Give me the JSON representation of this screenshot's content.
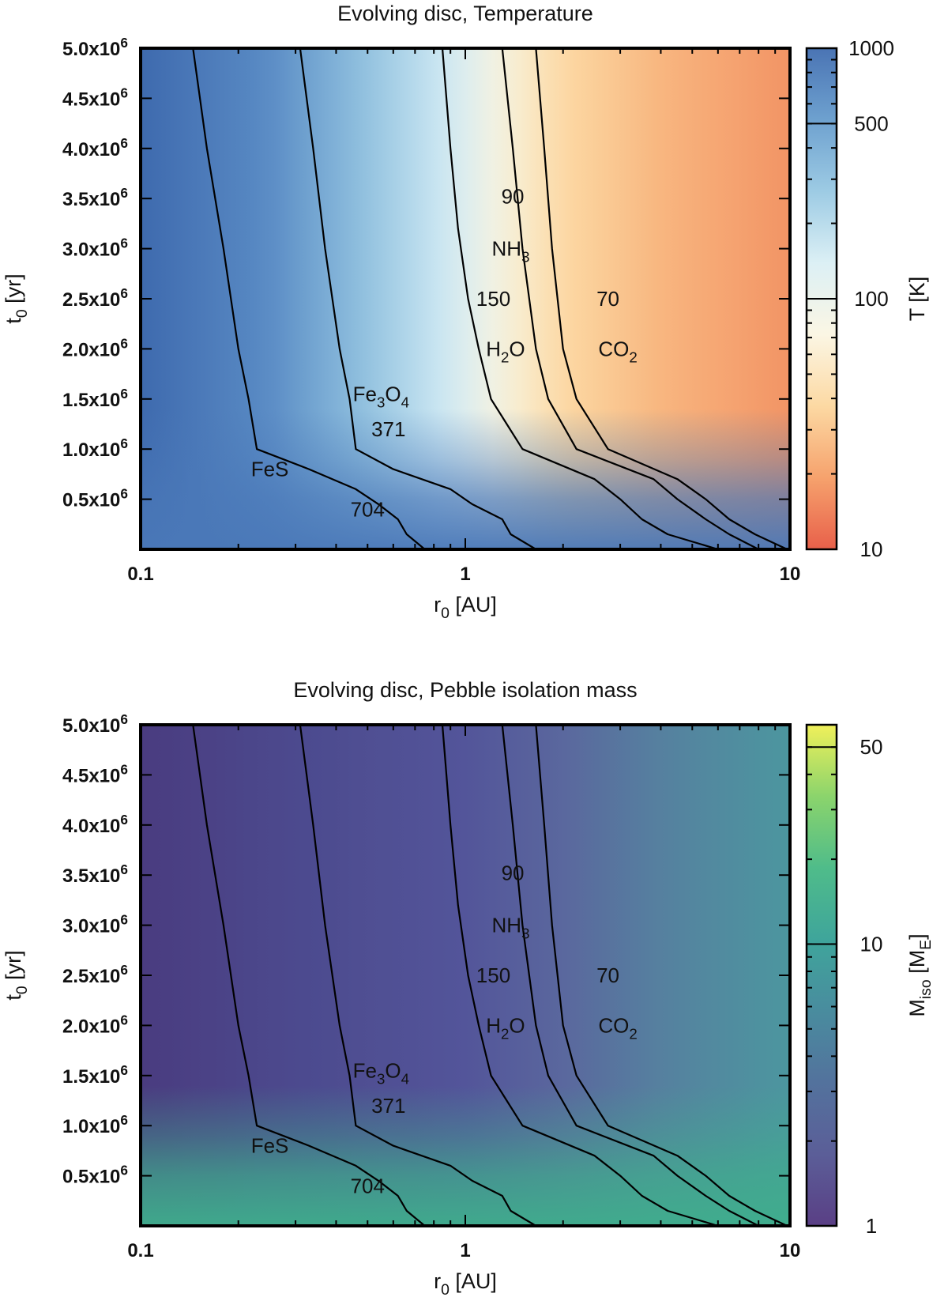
{
  "chart_data": [
    {
      "type": "heatmap",
      "title": "Evolving disc, Temperature",
      "xlabel": "r_0 [AU]",
      "xlabel_main": "r",
      "xlabel_sub": "0",
      "xlabel_rest": " [AU]",
      "ylabel": "t_0 [yr]",
      "ylabel_main": "t",
      "ylabel_sub": "0",
      "ylabel_rest": " [yr]",
      "xscale": "log",
      "xlim": [
        0.1,
        10
      ],
      "ylim": [
        0,
        5000000
      ],
      "xticks": [
        {
          "v": 0.1,
          "label": "0.1"
        },
        {
          "v": 1,
          "label": "1"
        },
        {
          "v": 10,
          "label": "10"
        }
      ],
      "yticks": [
        {
          "v": 500000,
          "mant": "0.5x10",
          "exp": "6"
        },
        {
          "v": 1000000,
          "mant": "1.0x10",
          "exp": "6"
        },
        {
          "v": 1500000,
          "mant": "1.5x10",
          "exp": "6"
        },
        {
          "v": 2000000,
          "mant": "2.0x10",
          "exp": "6"
        },
        {
          "v": 2500000,
          "mant": "2.5x10",
          "exp": "6"
        },
        {
          "v": 3000000,
          "mant": "3.0x10",
          "exp": "6"
        },
        {
          "v": 3500000,
          "mant": "3.5x10",
          "exp": "6"
        },
        {
          "v": 4000000,
          "mant": "4.0x10",
          "exp": "6"
        },
        {
          "v": 4500000,
          "mant": "4.5x10",
          "exp": "6"
        },
        {
          "v": 5000000,
          "mant": "5.0x10",
          "exp": "6"
        }
      ],
      "colorbar": {
        "label": "T [K]",
        "label_main": "T [K]",
        "label_sub": "",
        "label_rest": "",
        "scale": "log",
        "range": [
          10,
          1000
        ],
        "ticks": [
          {
            "v": 10,
            "label": "10"
          },
          {
            "v": 100,
            "label": "100"
          },
          {
            "v": 500,
            "label": "500"
          },
          {
            "v": 1000,
            "label": "1000"
          }
        ],
        "colors": [
          "#e8604a",
          "#f6a26d",
          "#fcd9a3",
          "#fbf6e4",
          "#dcf0f5",
          "#9dcbe4",
          "#6ea1cf",
          "#4a74b4"
        ]
      },
      "field": {
        "base_colors_by_r": [
          {
            "r": 0.1,
            "color": "#3e6aae"
          },
          {
            "r": 0.25,
            "color": "#5a8cc5"
          },
          {
            "r": 0.5,
            "color": "#93c3e0"
          },
          {
            "r": 0.9,
            "color": "#d2ebf4"
          },
          {
            "r": 1.3,
            "color": "#f7f3df"
          },
          {
            "r": 2.0,
            "color": "#fcd9a4"
          },
          {
            "r": 4.0,
            "color": "#f8b67f"
          },
          {
            "r": 10,
            "color": "#f29465"
          }
        ],
        "early_color": "#4a78b8"
      },
      "contours": [
        {
          "name": "FeS",
          "T": 704,
          "points": [
            [
              0.145,
              5000000
            ],
            [
              0.16,
              4000000
            ],
            [
              0.18,
              3000000
            ],
            [
              0.2,
              2000000
            ],
            [
              0.215,
              1500000
            ],
            [
              0.228,
              1000000
            ],
            [
              0.33,
              800000
            ],
            [
              0.46,
              600000
            ],
            [
              0.54,
              450000
            ],
            [
              0.62,
              300000
            ],
            [
              0.66,
              150000
            ],
            [
              0.75,
              0
            ]
          ]
        },
        {
          "name": "Fe3O4",
          "T": 371,
          "points": [
            [
              0.31,
              5000000
            ],
            [
              0.34,
              4000000
            ],
            [
              0.37,
              3000000
            ],
            [
              0.41,
              2000000
            ],
            [
              0.44,
              1500000
            ],
            [
              0.46,
              1000000
            ],
            [
              0.6,
              800000
            ],
            [
              0.9,
              600000
            ],
            [
              1.05,
              450000
            ],
            [
              1.3,
              300000
            ],
            [
              1.38,
              150000
            ],
            [
              1.65,
              0
            ]
          ]
        },
        {
          "name": "H2O",
          "T": 150,
          "points": [
            [
              0.85,
              5000000
            ],
            [
              0.9,
              4000000
            ],
            [
              0.95,
              3200000
            ],
            [
              1.02,
              2500000
            ],
            [
              1.1,
              2000000
            ],
            [
              1.2,
              1500000
            ],
            [
              1.5,
              1000000
            ],
            [
              2.5,
              700000
            ],
            [
              3.0,
              500000
            ],
            [
              3.5,
              300000
            ],
            [
              4.2,
              150000
            ],
            [
              6.0,
              0
            ]
          ]
        },
        {
          "name": "NH3",
          "T": 90,
          "points": [
            [
              1.3,
              5000000
            ],
            [
              1.4,
              4000000
            ],
            [
              1.5,
              3000000
            ],
            [
              1.65,
              2000000
            ],
            [
              1.8,
              1500000
            ],
            [
              2.2,
              1000000
            ],
            [
              3.8,
              700000
            ],
            [
              4.5,
              500000
            ],
            [
              5.5,
              300000
            ],
            [
              6.5,
              150000
            ],
            [
              8.0,
              0
            ]
          ]
        },
        {
          "name": "CO2",
          "T": 70,
          "points": [
            [
              1.65,
              5000000
            ],
            [
              1.75,
              4000000
            ],
            [
              1.85,
              3000000
            ],
            [
              2.0,
              2000000
            ],
            [
              2.2,
              1500000
            ],
            [
              2.75,
              1000000
            ],
            [
              4.5,
              700000
            ],
            [
              5.5,
              500000
            ],
            [
              6.5,
              300000
            ],
            [
              7.8,
              150000
            ],
            [
              9.8,
              0
            ]
          ]
        }
      ],
      "annotations": [
        {
          "label": "FeS",
          "sub": "",
          "rest": "",
          "r": 0.25,
          "t": 800000
        },
        {
          "label": "704",
          "sub": "",
          "rest": "",
          "r": 0.5,
          "t": 400000
        },
        {
          "label": "Fe",
          "sub": "3",
          "rest": "O",
          "sub2": "4",
          "r": 0.55,
          "t": 1550000
        },
        {
          "label": "371",
          "sub": "",
          "rest": "",
          "r": 0.58,
          "t": 1200000
        },
        {
          "label": "90",
          "sub": "",
          "rest": "",
          "r": 1.4,
          "t": 3520000
        },
        {
          "label": "NH",
          "sub": "3",
          "rest": "",
          "r": 1.38,
          "t": 3000000
        },
        {
          "label": "150",
          "sub": "",
          "rest": "",
          "r": 1.22,
          "t": 2500000
        },
        {
          "label": "H",
          "sub": "2",
          "rest": "O",
          "r": 1.33,
          "t": 2000000
        },
        {
          "label": "70",
          "sub": "",
          "rest": "",
          "r": 2.75,
          "t": 2500000
        },
        {
          "label": "CO",
          "sub": "2",
          "rest": "",
          "r": 2.95,
          "t": 2000000
        }
      ]
    },
    {
      "type": "heatmap",
      "title": "Evolving disc, Pebble isolation mass",
      "xlabel": "r_0 [AU]",
      "xlabel_main": "r",
      "xlabel_sub": "0",
      "xlabel_rest": " [AU]",
      "ylabel": "t_0 [yr]",
      "ylabel_main": "t",
      "ylabel_sub": "0",
      "ylabel_rest": " [yr]",
      "xscale": "log",
      "xlim": [
        0.1,
        10
      ],
      "ylim": [
        0,
        5000000
      ],
      "xticks": [
        {
          "v": 0.1,
          "label": "0.1"
        },
        {
          "v": 1,
          "label": "1"
        },
        {
          "v": 10,
          "label": "10"
        }
      ],
      "yticks": [
        {
          "v": 500000,
          "mant": "0.5x10",
          "exp": "6"
        },
        {
          "v": 1000000,
          "mant": "1.0x10",
          "exp": "6"
        },
        {
          "v": 1500000,
          "mant": "1.5x10",
          "exp": "6"
        },
        {
          "v": 2000000,
          "mant": "2.0x10",
          "exp": "6"
        },
        {
          "v": 2500000,
          "mant": "2.5x10",
          "exp": "6"
        },
        {
          "v": 3000000,
          "mant": "3.0x10",
          "exp": "6"
        },
        {
          "v": 3500000,
          "mant": "3.5x10",
          "exp": "6"
        },
        {
          "v": 4000000,
          "mant": "4.0x10",
          "exp": "6"
        },
        {
          "v": 4500000,
          "mant": "4.5x10",
          "exp": "6"
        },
        {
          "v": 5000000,
          "mant": "5.0x10",
          "exp": "6"
        }
      ],
      "colorbar": {
        "label": "M_iso [M_E]",
        "label_main": "M",
        "label_sub": "iso",
        "label_rest": " [M",
        "label_sub2": "E",
        "label_end": "]",
        "scale": "log",
        "range": [
          1,
          60
        ],
        "ticks": [
          {
            "v": 1,
            "label": "1"
          },
          {
            "v": 10,
            "label": "10"
          },
          {
            "v": 50,
            "label": "50"
          }
        ],
        "colors": [
          "#5a3f85",
          "#5b5e98",
          "#53729d",
          "#498c9e",
          "#3fa59b",
          "#4fbc8a",
          "#8bd46c",
          "#f0f05a"
        ]
      },
      "field": {
        "base_colors_by_r": [
          {
            "r": 0.1,
            "color": "#4a3c80"
          },
          {
            "r": 0.3,
            "color": "#4c4a8e"
          },
          {
            "r": 1.0,
            "color": "#53559a"
          },
          {
            "r": 2.0,
            "color": "#5a679e"
          },
          {
            "r": 4.0,
            "color": "#56819f"
          },
          {
            "r": 10,
            "color": "#4c969f"
          }
        ],
        "early_color": "#3fae8c"
      },
      "contours": [
        {
          "name": "FeS",
          "T": 704,
          "points": [
            [
              0.145,
              5000000
            ],
            [
              0.16,
              4000000
            ],
            [
              0.18,
              3000000
            ],
            [
              0.2,
              2000000
            ],
            [
              0.215,
              1500000
            ],
            [
              0.228,
              1000000
            ],
            [
              0.33,
              800000
            ],
            [
              0.46,
              600000
            ],
            [
              0.54,
              450000
            ],
            [
              0.62,
              300000
            ],
            [
              0.66,
              150000
            ],
            [
              0.75,
              0
            ]
          ]
        },
        {
          "name": "Fe3O4",
          "T": 371,
          "points": [
            [
              0.31,
              5000000
            ],
            [
              0.34,
              4000000
            ],
            [
              0.37,
              3000000
            ],
            [
              0.41,
              2000000
            ],
            [
              0.44,
              1500000
            ],
            [
              0.46,
              1000000
            ],
            [
              0.6,
              800000
            ],
            [
              0.9,
              600000
            ],
            [
              1.05,
              450000
            ],
            [
              1.3,
              300000
            ],
            [
              1.38,
              150000
            ],
            [
              1.65,
              0
            ]
          ]
        },
        {
          "name": "H2O",
          "T": 150,
          "points": [
            [
              0.85,
              5000000
            ],
            [
              0.9,
              4000000
            ],
            [
              0.95,
              3200000
            ],
            [
              1.02,
              2500000
            ],
            [
              1.1,
              2000000
            ],
            [
              1.2,
              1500000
            ],
            [
              1.5,
              1000000
            ],
            [
              2.5,
              700000
            ],
            [
              3.0,
              500000
            ],
            [
              3.5,
              300000
            ],
            [
              4.2,
              150000
            ],
            [
              6.0,
              0
            ]
          ]
        },
        {
          "name": "NH3",
          "T": 90,
          "points": [
            [
              1.3,
              5000000
            ],
            [
              1.4,
              4000000
            ],
            [
              1.5,
              3000000
            ],
            [
              1.65,
              2000000
            ],
            [
              1.8,
              1500000
            ],
            [
              2.2,
              1000000
            ],
            [
              3.8,
              700000
            ],
            [
              4.5,
              500000
            ],
            [
              5.5,
              300000
            ],
            [
              6.5,
              150000
            ],
            [
              8.0,
              0
            ]
          ]
        },
        {
          "name": "CO2",
          "T": 70,
          "points": [
            [
              1.65,
              5000000
            ],
            [
              1.75,
              4000000
            ],
            [
              1.85,
              3000000
            ],
            [
              2.0,
              2000000
            ],
            [
              2.2,
              1500000
            ],
            [
              2.75,
              1000000
            ],
            [
              4.5,
              700000
            ],
            [
              5.5,
              500000
            ],
            [
              6.5,
              300000
            ],
            [
              7.8,
              150000
            ],
            [
              9.8,
              0
            ]
          ]
        }
      ],
      "annotations": [
        {
          "label": "FeS",
          "sub": "",
          "rest": "",
          "r": 0.25,
          "t": 800000
        },
        {
          "label": "704",
          "sub": "",
          "rest": "",
          "r": 0.5,
          "t": 400000
        },
        {
          "label": "Fe",
          "sub": "3",
          "rest": "O",
          "sub2": "4",
          "r": 0.55,
          "t": 1550000
        },
        {
          "label": "371",
          "sub": "",
          "rest": "",
          "r": 0.58,
          "t": 1200000
        },
        {
          "label": "90",
          "sub": "",
          "rest": "",
          "r": 1.4,
          "t": 3520000
        },
        {
          "label": "NH",
          "sub": "3",
          "rest": "",
          "r": 1.38,
          "t": 3000000
        },
        {
          "label": "150",
          "sub": "",
          "rest": "",
          "r": 1.22,
          "t": 2500000
        },
        {
          "label": "H",
          "sub": "2",
          "rest": "O",
          "r": 1.33,
          "t": 2000000
        },
        {
          "label": "70",
          "sub": "",
          "rest": "",
          "r": 2.75,
          "t": 2500000
        },
        {
          "label": "CO",
          "sub": "2",
          "rest": "",
          "r": 2.95,
          "t": 2000000
        }
      ]
    }
  ]
}
